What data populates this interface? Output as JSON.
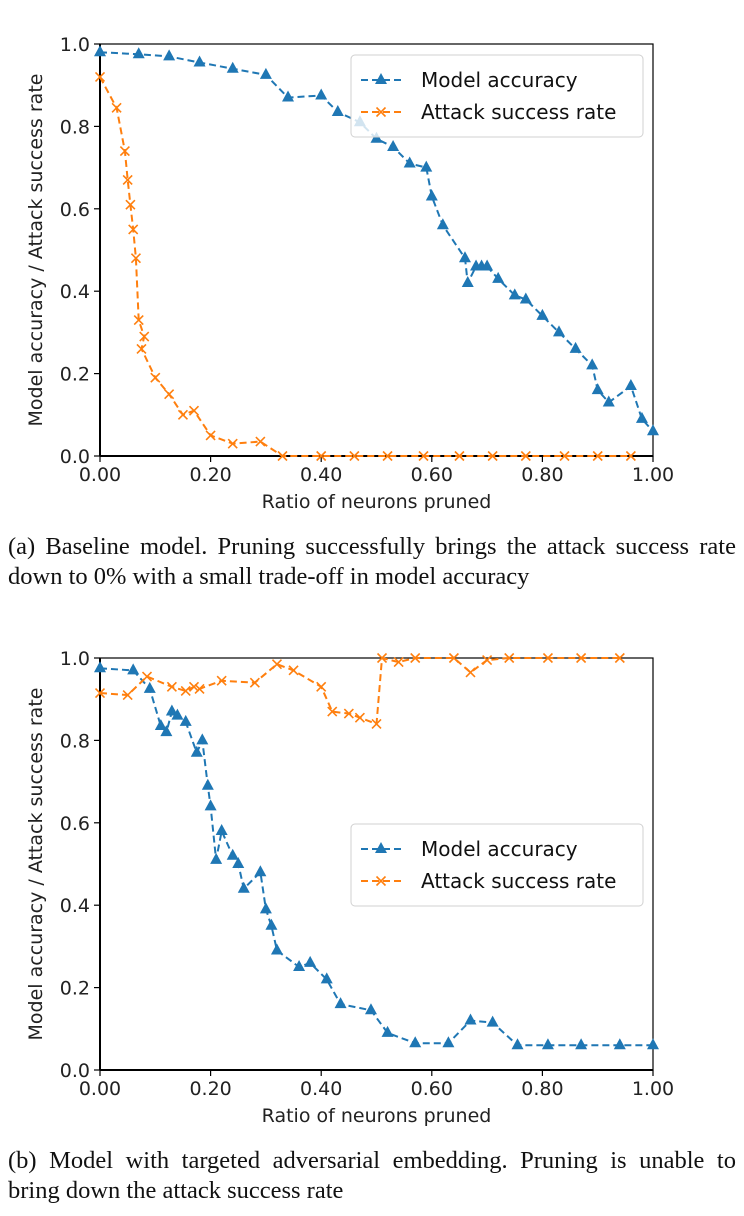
{
  "colors": {
    "accuracy": "#1f77b4",
    "attack": "#ff7f0e",
    "axis": "#000000"
  },
  "captions": {
    "a": "(a) Baseline model. Pruning successfully brings the attack success rate down to 0% with a small trade-off in model accuracy",
    "b": "(b) Model with targeted adversarial embedding. Pruning is unable to bring down the attack success rate"
  },
  "chart_data": [
    {
      "type": "line",
      "title": "",
      "xlabel": "Ratio of neurons pruned",
      "ylabel": "Model accuracy / Attack success rate",
      "xlim": [
        0,
        1
      ],
      "ylim": [
        0,
        1
      ],
      "xticks": [
        "0.00",
        "0.20",
        "0.40",
        "0.60",
        "0.80",
        "1.00"
      ],
      "xtick_values": [
        0,
        0.2,
        0.4,
        0.6,
        0.8,
        1.0
      ],
      "yticks": [
        "0.0",
        "0.2",
        "0.4",
        "0.6",
        "0.8",
        "1.0"
      ],
      "ytick_values": [
        0,
        0.2,
        0.4,
        0.6,
        0.8,
        1.0
      ],
      "grid": false,
      "legend_position": "top-right",
      "series": [
        {
          "name": "Model accuracy",
          "marker": "triangle",
          "linestyle": "dashed",
          "x": [
            0.0,
            0.07,
            0.125,
            0.18,
            0.24,
            0.3,
            0.34,
            0.4,
            0.43,
            0.47,
            0.5,
            0.53,
            0.56,
            0.59,
            0.6,
            0.62,
            0.66,
            0.665,
            0.68,
            0.69,
            0.7,
            0.72,
            0.75,
            0.77,
            0.8,
            0.83,
            0.86,
            0.89,
            0.9,
            0.92,
            0.96,
            0.98,
            1.0
          ],
          "y": [
            0.98,
            0.975,
            0.97,
            0.955,
            0.94,
            0.925,
            0.87,
            0.875,
            0.835,
            0.81,
            0.77,
            0.75,
            0.71,
            0.7,
            0.63,
            0.56,
            0.48,
            0.42,
            0.46,
            0.46,
            0.46,
            0.43,
            0.39,
            0.38,
            0.34,
            0.3,
            0.26,
            0.22,
            0.16,
            0.13,
            0.17,
            0.09,
            0.06
          ]
        },
        {
          "name": "Attack success rate",
          "marker": "x",
          "linestyle": "dashed",
          "x": [
            0.0,
            0.03,
            0.045,
            0.05,
            0.055,
            0.06,
            0.065,
            0.07,
            0.08,
            0.075,
            0.1,
            0.125,
            0.15,
            0.17,
            0.2,
            0.24,
            0.29,
            0.33,
            0.4,
            0.46,
            0.52,
            0.585,
            0.65,
            0.71,
            0.77,
            0.84,
            0.9,
            0.96
          ],
          "y": [
            0.92,
            0.845,
            0.74,
            0.67,
            0.61,
            0.55,
            0.48,
            0.33,
            0.29,
            0.26,
            0.19,
            0.15,
            0.1,
            0.11,
            0.05,
            0.03,
            0.035,
            0.0,
            0.0,
            0.0,
            0.0,
            0.0,
            0.0,
            0.0,
            0.0,
            0.0,
            0.0,
            0.0
          ]
        }
      ]
    },
    {
      "type": "line",
      "title": "",
      "xlabel": "Ratio of neurons pruned",
      "ylabel": "Model accuracy / Attack success rate",
      "xlim": [
        0,
        1
      ],
      "ylim": [
        0,
        1
      ],
      "xticks": [
        "0.00",
        "0.20",
        "0.40",
        "0.60",
        "0.80",
        "1.00"
      ],
      "xtick_values": [
        0,
        0.2,
        0.4,
        0.6,
        0.8,
        1.0
      ],
      "yticks": [
        "0.0",
        "0.2",
        "0.4",
        "0.6",
        "0.8",
        "1.0"
      ],
      "ytick_values": [
        0,
        0.2,
        0.4,
        0.6,
        0.8,
        1.0
      ],
      "grid": false,
      "legend_position": "center-right",
      "series": [
        {
          "name": "Model accuracy",
          "marker": "triangle",
          "linestyle": "dashed",
          "x": [
            0.0,
            0.06,
            0.09,
            0.11,
            0.12,
            0.13,
            0.14,
            0.155,
            0.175,
            0.185,
            0.195,
            0.2,
            0.21,
            0.22,
            0.24,
            0.25,
            0.26,
            0.29,
            0.3,
            0.31,
            0.32,
            0.36,
            0.38,
            0.41,
            0.435,
            0.49,
            0.52,
            0.57,
            0.63,
            0.67,
            0.71,
            0.755,
            0.81,
            0.87,
            0.94,
            1.0
          ],
          "y": [
            0.975,
            0.97,
            0.925,
            0.835,
            0.82,
            0.87,
            0.86,
            0.845,
            0.77,
            0.8,
            0.69,
            0.64,
            0.51,
            0.58,
            0.52,
            0.5,
            0.44,
            0.48,
            0.39,
            0.35,
            0.29,
            0.25,
            0.26,
            0.22,
            0.16,
            0.145,
            0.09,
            0.065,
            0.065,
            0.12,
            0.115,
            0.06,
            0.06,
            0.06,
            0.06,
            0.06
          ]
        },
        {
          "name": "Attack success rate",
          "marker": "x",
          "linestyle": "dashed",
          "x": [
            0.0,
            0.05,
            0.085,
            0.13,
            0.155,
            0.17,
            0.18,
            0.22,
            0.28,
            0.32,
            0.35,
            0.4,
            0.42,
            0.45,
            0.47,
            0.5,
            0.51,
            0.54,
            0.57,
            0.64,
            0.67,
            0.7,
            0.74,
            0.81,
            0.87,
            0.94
          ],
          "y": [
            0.915,
            0.91,
            0.955,
            0.93,
            0.92,
            0.93,
            0.925,
            0.945,
            0.94,
            0.985,
            0.97,
            0.93,
            0.87,
            0.865,
            0.855,
            0.84,
            1.0,
            0.99,
            1.0,
            1.0,
            0.965,
            0.995,
            1.0,
            1.0,
            1.0,
            1.0
          ]
        }
      ]
    }
  ]
}
